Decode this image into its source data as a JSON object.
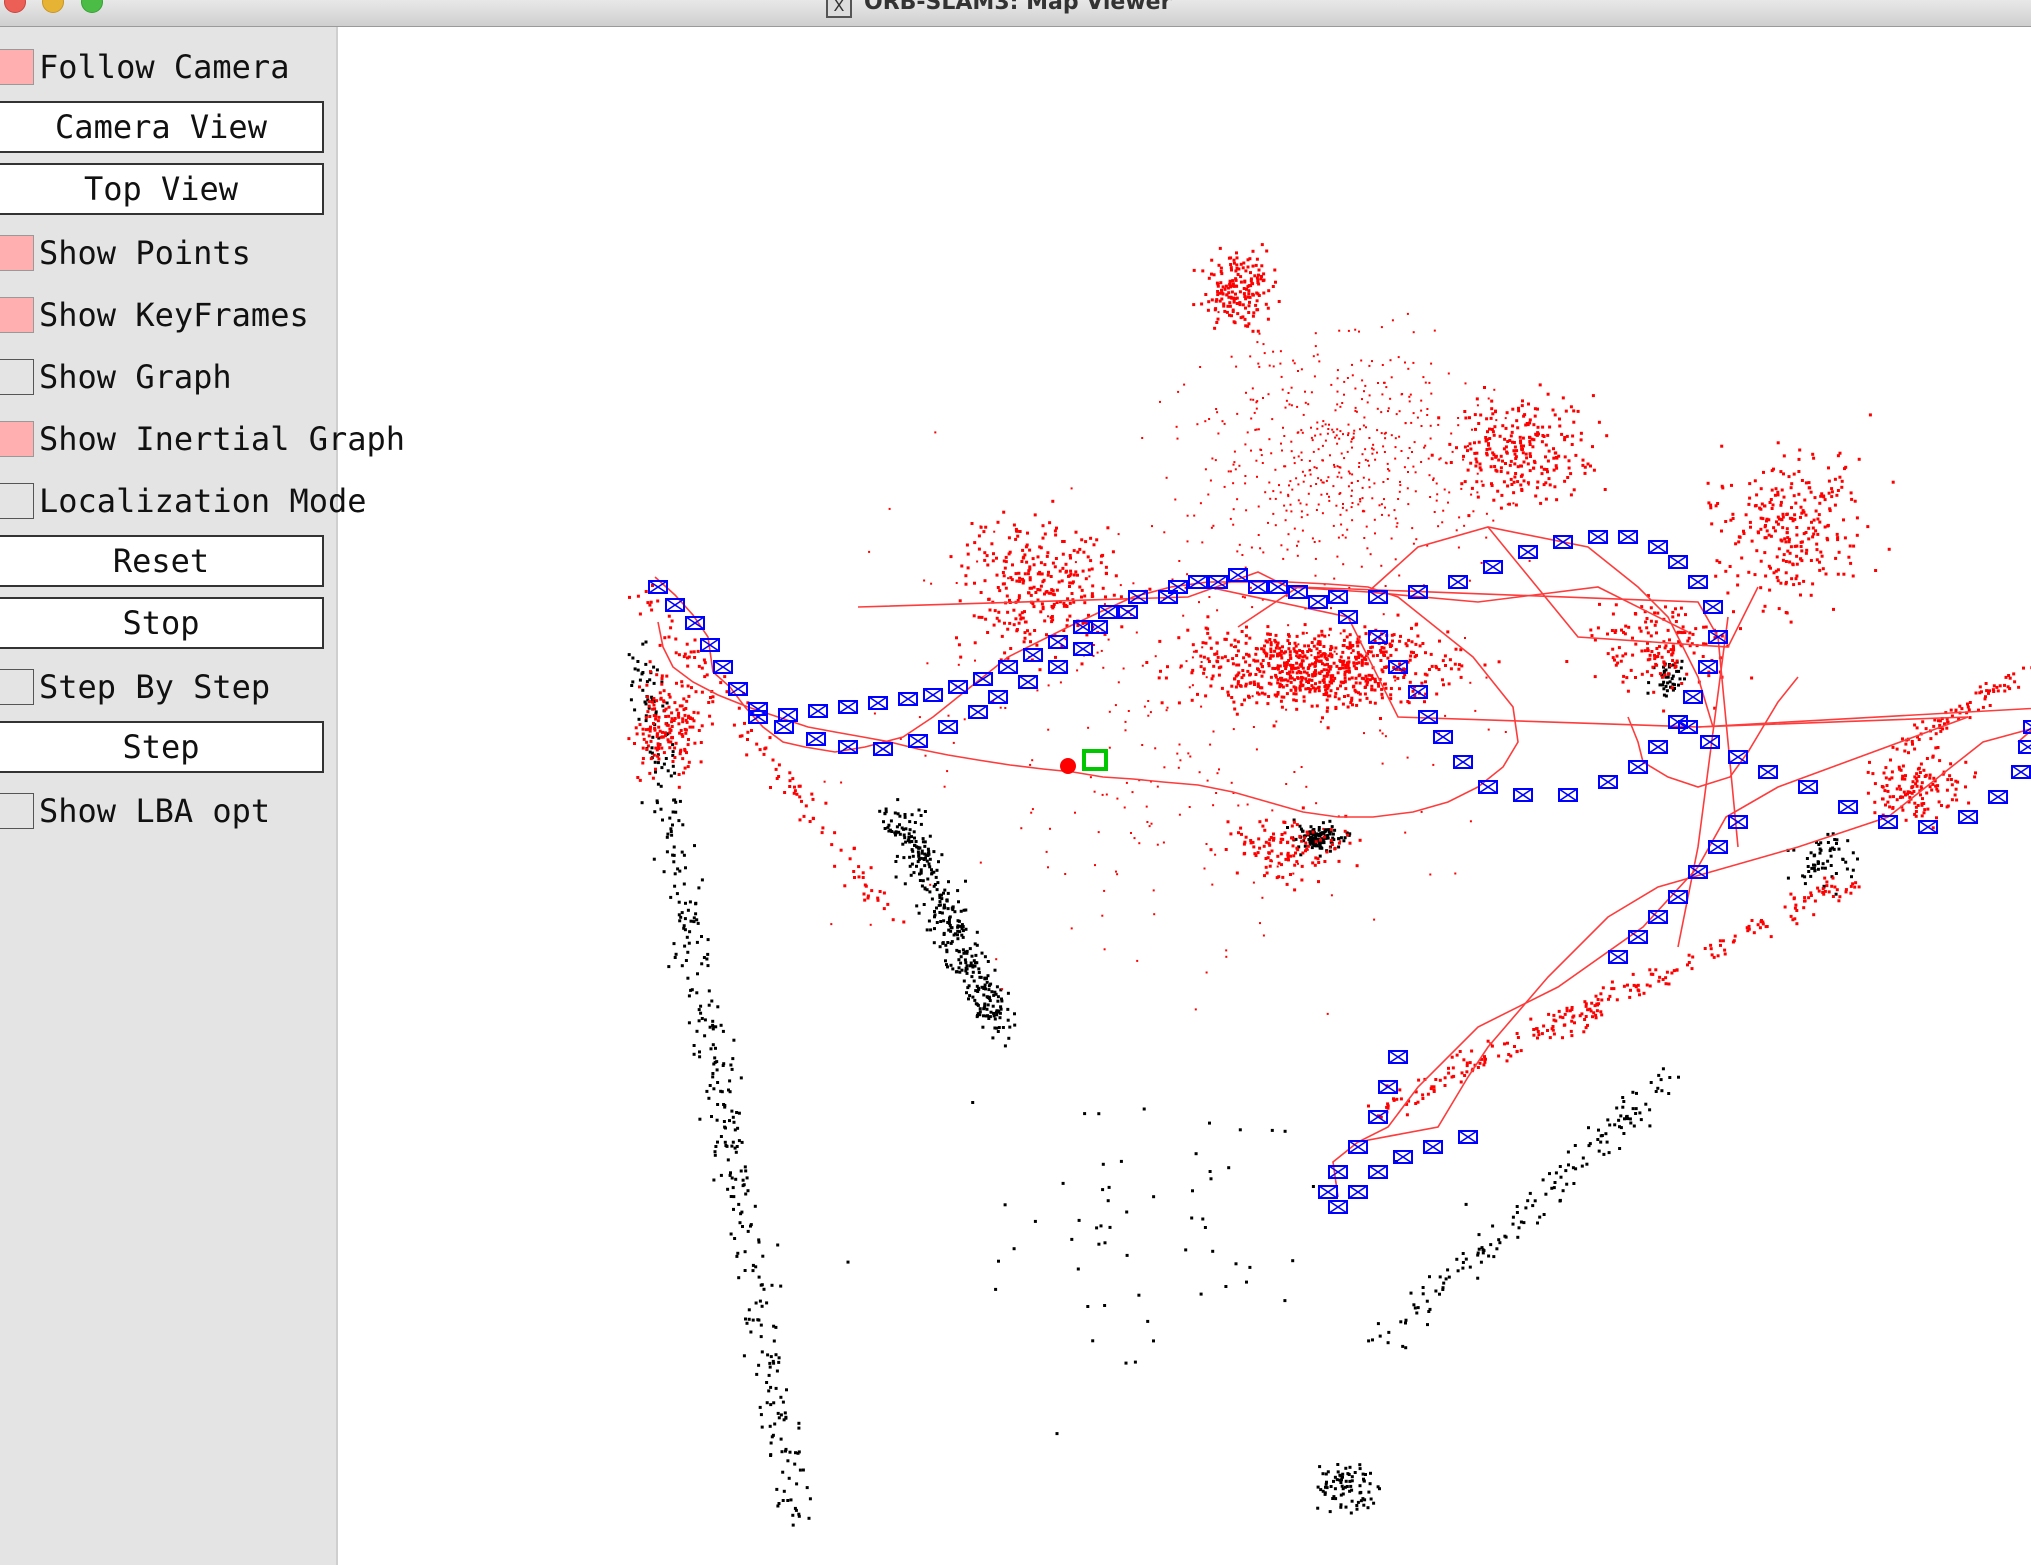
{
  "window": {
    "title": "ORB-SLAM3: Map Viewer",
    "x_icon": "X"
  },
  "panel": {
    "follow_camera": {
      "label": "Follow Camera",
      "checked": true
    },
    "camera_view": {
      "label": "Camera View"
    },
    "top_view": {
      "label": "Top View"
    },
    "show_points": {
      "label": "Show Points",
      "checked": true
    },
    "show_keyframes": {
      "label": "Show KeyFrames",
      "checked": true
    },
    "show_graph": {
      "label": "Show Graph",
      "checked": false
    },
    "show_inertial_graph": {
      "label": "Show Inertial Graph",
      "checked": true
    },
    "localization_mode": {
      "label": "Localization Mode",
      "checked": false
    },
    "reset": {
      "label": "Reset"
    },
    "stop": {
      "label": "Stop"
    },
    "step_by_step": {
      "label": "Step By Step",
      "checked": false
    },
    "step": {
      "label": "Step"
    },
    "show_lba_opt": {
      "label": "Show LBA opt",
      "checked": false
    }
  },
  "colors": {
    "checkbox_on": "#ffafaf",
    "map_point_local": "#ff0000",
    "map_point_global": "#000000",
    "keyframe": "#0000ff",
    "graph_edge": "#ff3b3b",
    "current_camera": "#00c800"
  }
}
